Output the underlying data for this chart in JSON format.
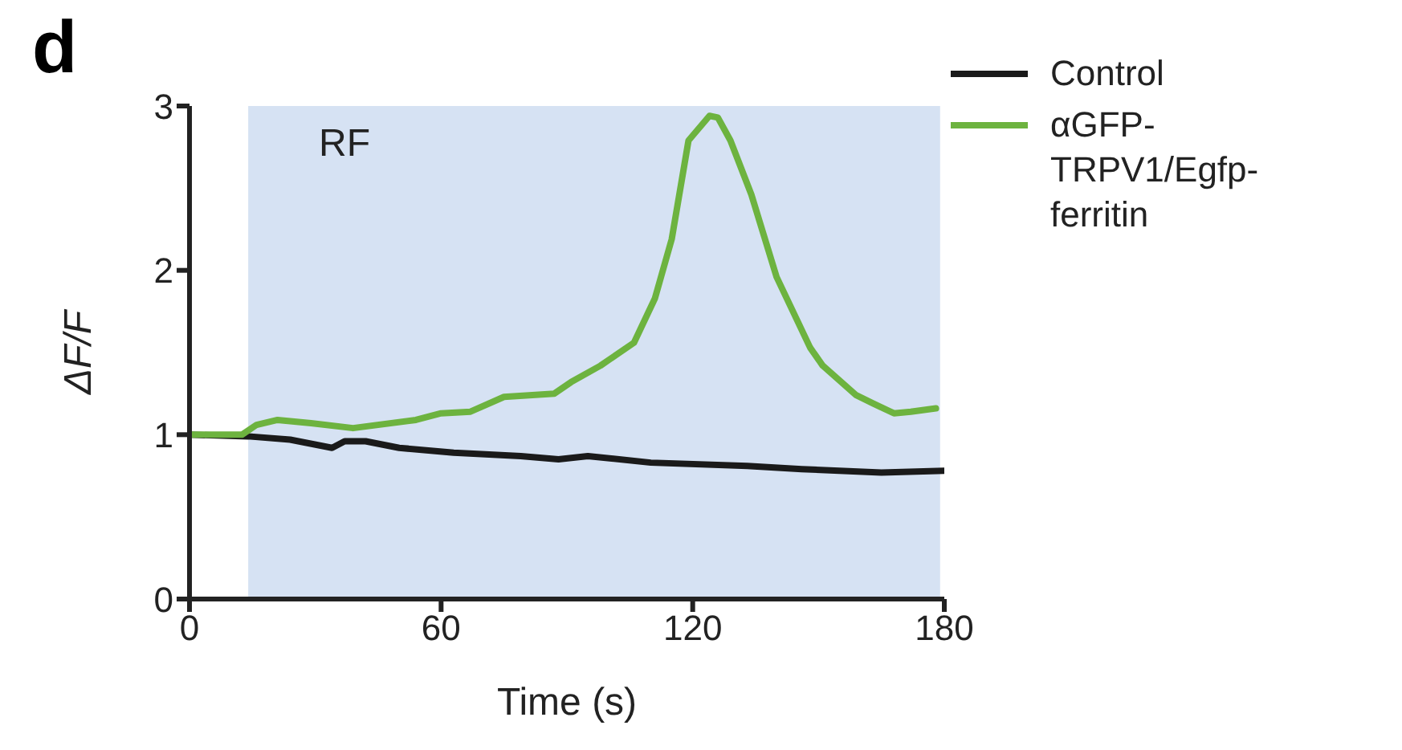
{
  "chart_data": {
    "type": "line",
    "title": "d",
    "xlabel": "Time (s)",
    "ylabel": "ΔF/F",
    "xlim": [
      0,
      180
    ],
    "xticks": [
      0,
      60,
      120,
      180
    ],
    "ylim": [
      0,
      3
    ],
    "yticks": [
      0,
      1,
      2,
      3
    ],
    "grid": false,
    "legend": "top right",
    "marker": "none",
    "line_style": "solid",
    "bands": [
      {
        "axis": "x",
        "from": 14,
        "to": 179,
        "label": "RF",
        "color": "#d6e2f3"
      }
    ],
    "series": [
      {
        "name": "Control",
        "color": "#1a1a1a",
        "x": [
          0,
          14,
          24,
          34,
          37,
          42,
          50,
          63,
          79,
          88,
          95,
          110,
          133,
          146,
          165,
          180
        ],
        "values": [
          1.0,
          0.99,
          0.97,
          0.92,
          0.96,
          0.96,
          0.92,
          0.89,
          0.87,
          0.85,
          0.87,
          0.83,
          0.81,
          0.79,
          0.77,
          0.78
        ]
      },
      {
        "name": "αGFP-TRPV1/Egfp-ferritin",
        "color": "#6db33f",
        "x": [
          0,
          12.5,
          16,
          21,
          29,
          39,
          54,
          60,
          67,
          75,
          87,
          91,
          98,
          106,
          111,
          115,
          119,
          124,
          126,
          129,
          134,
          140,
          148,
          151,
          159,
          163,
          168,
          172,
          178
        ],
        "values": [
          1.0,
          1.0,
          1.06,
          1.09,
          1.07,
          1.04,
          1.09,
          1.13,
          1.14,
          1.23,
          1.25,
          1.32,
          1.42,
          1.56,
          1.83,
          2.19,
          2.79,
          2.94,
          2.93,
          2.79,
          2.46,
          1.96,
          1.53,
          1.42,
          1.24,
          1.19,
          1.13,
          1.14,
          1.16
        ]
      }
    ]
  }
}
